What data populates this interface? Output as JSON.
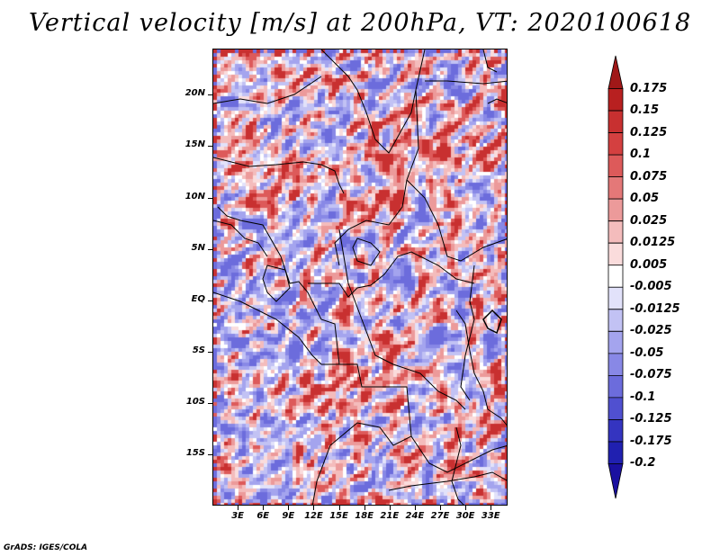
{
  "title": "Vertical velocity [m/s] at 200hPa, VT: 2020100618",
  "footer": "GrADS: IGES/COLA",
  "map": {
    "lon_range": [
      0,
      35
    ],
    "lat_range": [
      -20,
      24.5
    ],
    "lat_labels": [
      "20N",
      "15N",
      "10N",
      "5N",
      "EQ",
      "5S",
      "10S",
      "15S"
    ],
    "lat_values": [
      20,
      15,
      10,
      5,
      0,
      -5,
      -10,
      -15
    ],
    "lon_labels": [
      "3E",
      "6E",
      "9E",
      "12E",
      "15E",
      "18E",
      "21E",
      "24E",
      "27E",
      "30E",
      "33E"
    ],
    "lon_values": [
      3,
      6,
      9,
      12,
      15,
      18,
      21,
      24,
      27,
      30,
      33
    ]
  },
  "colorbar": {
    "labels": [
      "0.175",
      "0.15",
      "0.125",
      "0.1",
      "0.075",
      "0.05",
      "0.025",
      "0.0125",
      "0.005",
      "-0.005",
      "-0.0125",
      "-0.025",
      "-0.05",
      "-0.075",
      "-0.1",
      "-0.125",
      "-0.175",
      "-0.2"
    ],
    "colors": [
      "#a01818",
      "#b82020",
      "#c83030",
      "#d44040",
      "#dd5a5a",
      "#e47878",
      "#ec9a9a",
      "#f4bcbc",
      "#fadcdc",
      "#ffffff",
      "#e2e2fa",
      "#c2c2f4",
      "#a4a4ee",
      "#8888e6",
      "#6c6cdc",
      "#5050d0",
      "#3434c0",
      "#2020b0",
      "#1a10a0"
    ]
  }
}
